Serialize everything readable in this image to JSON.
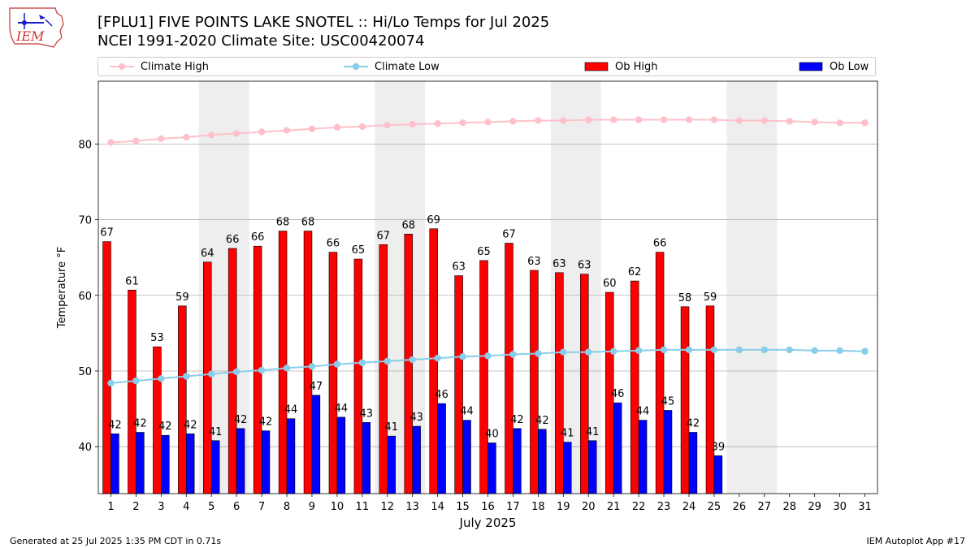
{
  "logo_text": "IEM",
  "title_line1": "[FPLU1] FIVE POINTS LAKE SNOTEL :: Hi/Lo Temps for Jul 2025",
  "title_line2": "NCEI 1991-2020 Climate Site: USC00420074",
  "footer_left": "Generated at 25 Jul 2025 1:35 PM CDT in 0.71s",
  "footer_right": "IEM Autoplot App #17",
  "legend": [
    {
      "label": "Climate High",
      "kind": "line",
      "color": "#FFC0CB"
    },
    {
      "label": "Climate Low",
      "kind": "line",
      "color": "#87CEEB"
    },
    {
      "label": "Ob High",
      "kind": "bar",
      "color": "#FF0000"
    },
    {
      "label": "Ob Low",
      "kind": "bar",
      "color": "#0000FF"
    }
  ],
  "chart_data": {
    "type": "bar",
    "xlabel": "July 2025",
    "ylabel": "Temperature °F",
    "ylim": [
      33.8,
      88.3
    ],
    "yticks": [
      40,
      50,
      60,
      70,
      80
    ],
    "grid": "horizontal",
    "legend_position": "top",
    "categories": [
      "1",
      "2",
      "3",
      "4",
      "5",
      "6",
      "7",
      "8",
      "9",
      "10",
      "11",
      "12",
      "13",
      "14",
      "15",
      "16",
      "17",
      "18",
      "19",
      "20",
      "21",
      "22",
      "23",
      "24",
      "25",
      "26",
      "27",
      "28",
      "29",
      "30",
      "31"
    ],
    "weekend_shading": [
      [
        5,
        6
      ],
      [
        12,
        13
      ],
      [
        19,
        20
      ],
      [
        26,
        27
      ]
    ],
    "series": [
      {
        "name": "Ob High",
        "type": "bar",
        "color": "#FF0000",
        "values": [
          67,
          61,
          53,
          59,
          64,
          66,
          66,
          68,
          68,
          66,
          65,
          67,
          68,
          69,
          63,
          65,
          67,
          63,
          63,
          63,
          60,
          62,
          66,
          58,
          59,
          null,
          null,
          null,
          null,
          null,
          null
        ],
        "precise": [
          67.1,
          60.7,
          53.2,
          58.6,
          64.4,
          66.2,
          66.5,
          68.5,
          68.5,
          65.7,
          64.8,
          66.7,
          68.1,
          68.8,
          62.6,
          64.6,
          66.9,
          63.3,
          63.0,
          62.8,
          60.4,
          61.9,
          65.7,
          58.5,
          58.6,
          null,
          null,
          null,
          null,
          null,
          null
        ]
      },
      {
        "name": "Ob Low",
        "type": "bar",
        "color": "#0000FF",
        "values": [
          42,
          42,
          42,
          42,
          41,
          42,
          42,
          44,
          47,
          44,
          43,
          41,
          43,
          46,
          44,
          40,
          42,
          42,
          41,
          41,
          46,
          44,
          45,
          42,
          39,
          null,
          null,
          null,
          null,
          null,
          null
        ],
        "precise": [
          41.7,
          41.9,
          41.5,
          41.7,
          40.8,
          42.4,
          42.1,
          43.7,
          46.8,
          43.9,
          43.2,
          41.4,
          42.7,
          45.7,
          43.5,
          40.5,
          42.4,
          42.3,
          40.6,
          40.8,
          45.8,
          43.5,
          44.8,
          41.9,
          38.8,
          null,
          null,
          null,
          null,
          null,
          null
        ]
      },
      {
        "name": "Climate High",
        "type": "line",
        "color": "#FFC0CB",
        "values": [
          80.2,
          80.4,
          80.7,
          80.9,
          81.2,
          81.4,
          81.6,
          81.8,
          82.0,
          82.2,
          82.3,
          82.5,
          82.6,
          82.7,
          82.8,
          82.9,
          83.0,
          83.1,
          83.1,
          83.2,
          83.2,
          83.2,
          83.2,
          83.2,
          83.2,
          83.1,
          83.1,
          83.0,
          82.9,
          82.8,
          82.8
        ]
      },
      {
        "name": "Climate Low",
        "type": "line",
        "color": "#87CEEB",
        "values": [
          48.4,
          48.7,
          49.0,
          49.3,
          49.6,
          49.9,
          50.1,
          50.4,
          50.6,
          50.9,
          51.1,
          51.3,
          51.5,
          51.7,
          51.9,
          52.0,
          52.2,
          52.3,
          52.5,
          52.5,
          52.6,
          52.7,
          52.8,
          52.8,
          52.8,
          52.8,
          52.8,
          52.8,
          52.7,
          52.7,
          52.6
        ]
      }
    ]
  }
}
